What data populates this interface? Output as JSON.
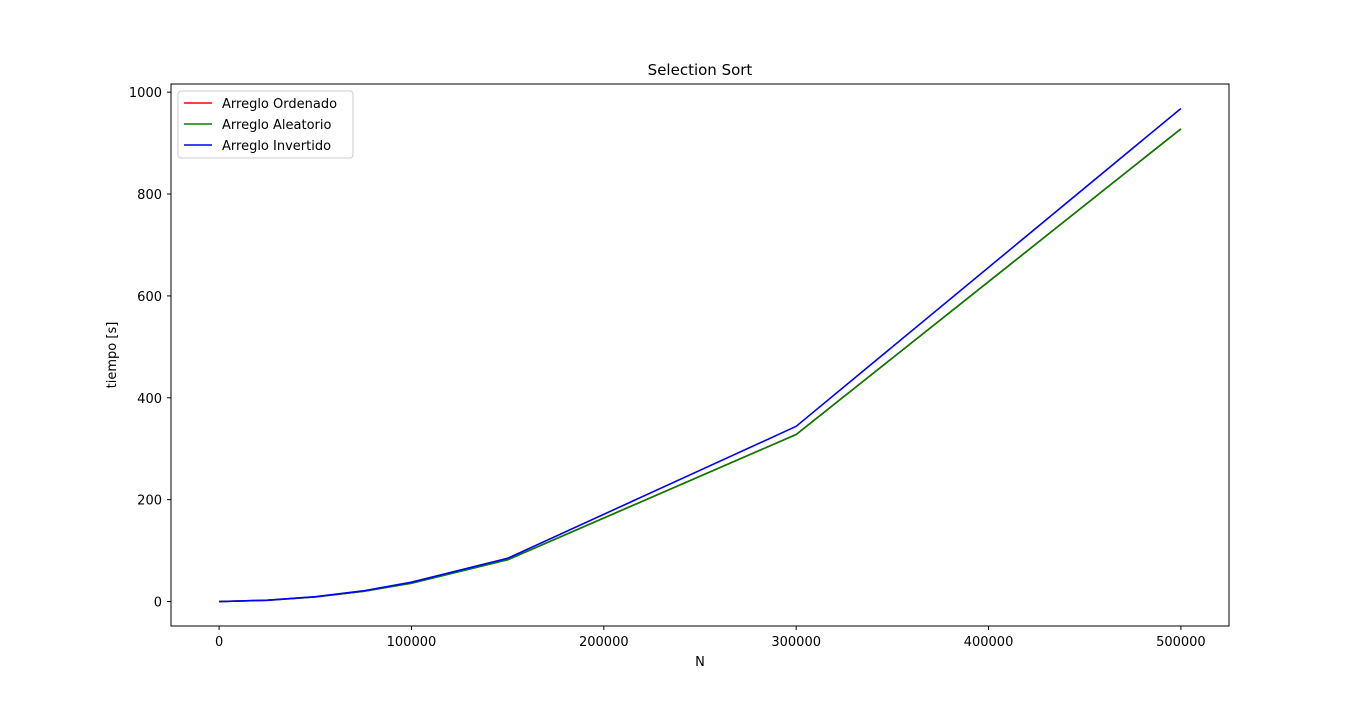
{
  "chart_data": {
    "type": "line",
    "title": "Selection Sort",
    "xlabel": "N",
    "ylabel": "tiempo [s]",
    "xlim": [
      -25000,
      525000
    ],
    "ylim": [
      -48,
      1016
    ],
    "xticks": [
      0,
      100000,
      200000,
      300000,
      400000,
      500000
    ],
    "yticks": [
      0,
      200,
      400,
      600,
      800,
      1000
    ],
    "x": [
      0,
      25000,
      50000,
      75000,
      100000,
      150000,
      300000,
      500000
    ],
    "legend_position": "upper-left",
    "grid": false,
    "series": [
      {
        "name": "Arreglo Ordenado",
        "color": "#ff0000",
        "values": [
          0,
          2.5,
          9,
          20,
          36,
          82,
          328,
          928
        ]
      },
      {
        "name": "Arreglo Aleatorio",
        "color": "#008000",
        "values": [
          0,
          2.5,
          9,
          20,
          36,
          82,
          328,
          928
        ]
      },
      {
        "name": "Arreglo Invertido",
        "color": "#0000ff",
        "values": [
          0,
          2.6,
          9.5,
          21,
          38,
          85,
          344,
          968
        ]
      }
    ]
  }
}
